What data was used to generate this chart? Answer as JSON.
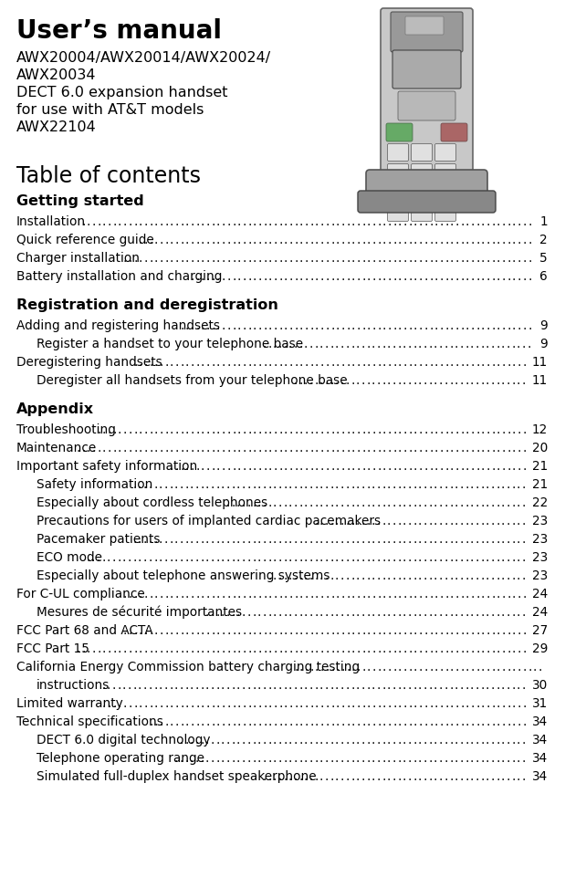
{
  "bg_color": "#ffffff",
  "title_bold": "User’s manual",
  "subtitle_lines": [
    "AWX20004/AWX20014/AWX20024/",
    "AWX20034",
    "DECT 6.0 expansion handset",
    "for use with AT&T models",
    "AWX22104"
  ],
  "toc_title": "Table of contents",
  "sections": [
    {
      "heading": "Getting started",
      "entries": [
        {
          "indent": 0,
          "text": "Installation",
          "page": "1"
        },
        {
          "indent": 0,
          "text": "Quick reference guide  ",
          "page": "2"
        },
        {
          "indent": 0,
          "text": "Charger installation",
          "page": "5"
        },
        {
          "indent": 0,
          "text": "Battery installation and charging",
          "page": "6"
        }
      ]
    },
    {
      "heading": "Registration and deregistration",
      "entries": [
        {
          "indent": 0,
          "text": "Adding and registering handsets",
          "page": "9"
        },
        {
          "indent": 1,
          "text": "Register a handset to your telephone base  ",
          "page": "9"
        },
        {
          "indent": 0,
          "text": "Deregistering handsets",
          "page": "11"
        },
        {
          "indent": 1,
          "text": "Deregister all handsets from your telephone base ",
          "page": "11"
        }
      ]
    },
    {
      "heading": "Appendix",
      "entries": [
        {
          "indent": 0,
          "text": "Troubleshooting",
          "page": "12"
        },
        {
          "indent": 0,
          "text": "Maintenance",
          "page": "20"
        },
        {
          "indent": 0,
          "text": "Important safety information ",
          "page": "21"
        },
        {
          "indent": 1,
          "text": "Safety information",
          "page": "21"
        },
        {
          "indent": 1,
          "text": "Especially about cordless telephones",
          "page": "22"
        },
        {
          "indent": 1,
          "text": "Precautions for users of implanted cardiac pacemakers",
          "page": "23"
        },
        {
          "indent": 1,
          "text": "Pacemaker patients",
          "page": "23"
        },
        {
          "indent": 1,
          "text": "ECO mode ",
          "page": "23"
        },
        {
          "indent": 1,
          "text": "Especially about telephone answering systems",
          "page": "23"
        },
        {
          "indent": 0,
          "text": "For C-UL compliance ",
          "page": "24"
        },
        {
          "indent": 1,
          "text": "Mesures de sécurité importantes ",
          "page": "24"
        },
        {
          "indent": 0,
          "text": "FCC Part 68 and ACTA",
          "page": "27"
        },
        {
          "indent": 0,
          "text": "FCC Part 15",
          "page": "29"
        },
        {
          "indent": 0,
          "text": "California Energy Commission battery charging testing",
          "page": ""
        },
        {
          "indent": 1,
          "text": "instructions",
          "page": "30"
        },
        {
          "indent": 0,
          "text": "Limited warranty",
          "page": "31"
        },
        {
          "indent": 0,
          "text": "Technical specifications ",
          "page": "34"
        },
        {
          "indent": 1,
          "text": "DECT 6.0 digital technology",
          "page": "34"
        },
        {
          "indent": 1,
          "text": "Telephone operating range ",
          "page": "34"
        },
        {
          "indent": 1,
          "text": "Simulated full-duplex handset speakerphone ",
          "page": "34"
        }
      ]
    }
  ],
  "text_color": "#000000",
  "title_fontsize": 20,
  "subtitle_fontsize": 11.5,
  "toc_title_fontsize": 17,
  "heading_fontsize": 11.5,
  "entry_fontsize": 9.8
}
